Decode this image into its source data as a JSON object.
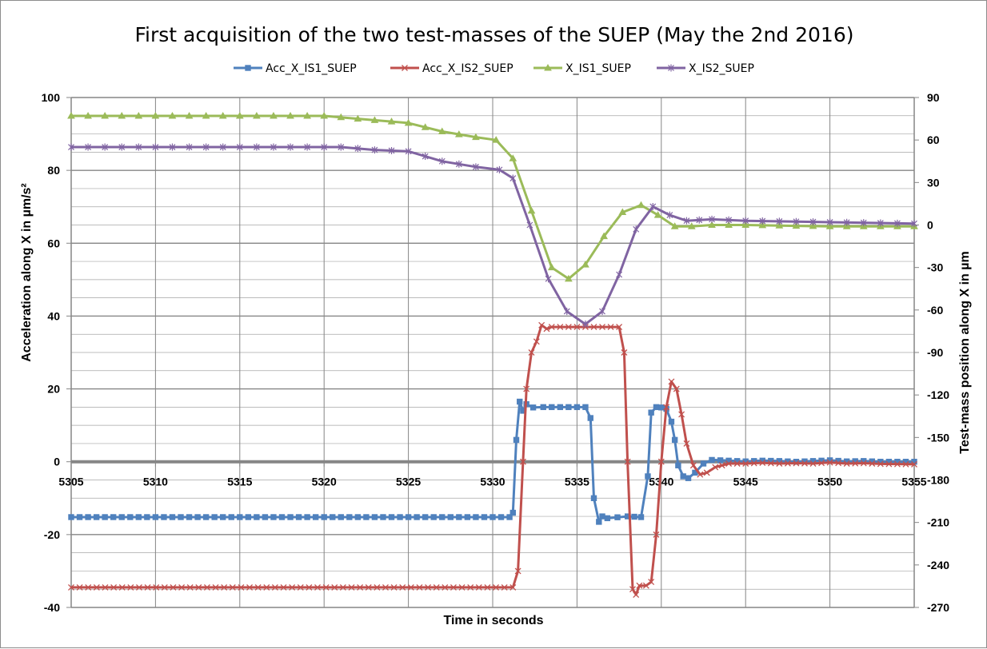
{
  "chart_data": {
    "type": "line",
    "title": "First acquisition of the two test-masses of the SUEP (May the 2nd 2016)",
    "xlabel": "Time in seconds",
    "ylabel_left": "Acceleration along X in µm/s²",
    "ylabel_right": "Test-mass position along X in µm",
    "xlim": [
      5305,
      5355
    ],
    "ylim_left": [
      -40,
      100
    ],
    "ylim_right": [
      -270,
      90
    ],
    "x_ticks": [
      5305,
      5310,
      5315,
      5320,
      5325,
      5330,
      5335,
      5340,
      5345,
      5350,
      5355
    ],
    "y_left_ticks": [
      -40,
      -20,
      0,
      20,
      40,
      60,
      80,
      100
    ],
    "y_right_ticks": [
      -270,
      -240,
      -210,
      -180,
      -150,
      -120,
      -90,
      -60,
      -30,
      0,
      30,
      60,
      90
    ],
    "grid": true,
    "legend_position": "top",
    "series": [
      {
        "name": "Acc_X_IS1_SUEP",
        "axis": "left",
        "color": "#4f81bd",
        "marker": "square",
        "points": [
          [
            5305,
            -15.2
          ],
          [
            5331,
            -15.2
          ],
          [
            5331.2,
            -14
          ],
          [
            5331.4,
            6
          ],
          [
            5331.6,
            16.5
          ],
          [
            5331.8,
            14
          ],
          [
            5332,
            15.8
          ],
          [
            5332.4,
            14.9
          ],
          [
            5333,
            15
          ],
          [
            5335.5,
            15
          ],
          [
            5335.8,
            12
          ],
          [
            5336,
            -10
          ],
          [
            5336.3,
            -16.5
          ],
          [
            5336.5,
            -15
          ],
          [
            5336.8,
            -15.5
          ],
          [
            5338,
            -15
          ],
          [
            5338.8,
            -15.2
          ],
          [
            5339.2,
            -4
          ],
          [
            5339.4,
            13.5
          ],
          [
            5339.7,
            15
          ],
          [
            5340,
            14.9
          ],
          [
            5340.3,
            14.5
          ],
          [
            5340.6,
            11
          ],
          [
            5340.8,
            6
          ],
          [
            5341,
            -1
          ],
          [
            5341.3,
            -4
          ],
          [
            5341.6,
            -4.5
          ],
          [
            5342,
            -3
          ],
          [
            5342.5,
            -0.5
          ],
          [
            5343,
            0.5
          ],
          [
            5344,
            0.3
          ],
          [
            5345,
            0.1
          ],
          [
            5346,
            0.3
          ],
          [
            5347,
            0.2
          ],
          [
            5348,
            0
          ],
          [
            5349,
            0.2
          ],
          [
            5350,
            0.4
          ],
          [
            5351,
            0.1
          ],
          [
            5352,
            0.2
          ],
          [
            5353,
            0
          ],
          [
            5355,
            0
          ]
        ]
      },
      {
        "name": "Acc_X_IS2_SUEP",
        "axis": "left",
        "color": "#c0504d",
        "marker": "x",
        "points": [
          [
            5305,
            -34.5
          ],
          [
            5331.2,
            -34.5
          ],
          [
            5331.5,
            -30
          ],
          [
            5331.8,
            0
          ],
          [
            5332,
            20
          ],
          [
            5332.3,
            30
          ],
          [
            5332.6,
            33
          ],
          [
            5332.9,
            37.5
          ],
          [
            5333.2,
            36.5
          ],
          [
            5333.5,
            37
          ],
          [
            5335,
            37
          ],
          [
            5337.5,
            37
          ],
          [
            5337.8,
            30
          ],
          [
            5338,
            0
          ],
          [
            5338.3,
            -35
          ],
          [
            5338.5,
            -36.5
          ],
          [
            5338.7,
            -34
          ],
          [
            5339.1,
            -34
          ],
          [
            5339.4,
            -33
          ],
          [
            5339.7,
            -20
          ],
          [
            5340,
            0
          ],
          [
            5340.3,
            15
          ],
          [
            5340.6,
            22
          ],
          [
            5340.9,
            20
          ],
          [
            5341.2,
            13
          ],
          [
            5341.5,
            5
          ],
          [
            5341.9,
            -1
          ],
          [
            5342.3,
            -3.5
          ],
          [
            5342.7,
            -3
          ],
          [
            5343.2,
            -1.5
          ],
          [
            5344,
            -0.5
          ],
          [
            5345,
            -0.5
          ],
          [
            5346,
            -0.3
          ],
          [
            5347,
            -0.5
          ],
          [
            5348,
            -0.4
          ],
          [
            5349,
            -0.5
          ],
          [
            5350,
            -0.2
          ],
          [
            5351,
            -0.5
          ],
          [
            5352,
            -0.4
          ],
          [
            5353,
            -0.6
          ],
          [
            5355,
            -0.7
          ]
        ]
      },
      {
        "name": "X_IS1_SUEP",
        "axis": "right",
        "color": "#9bbb59",
        "marker": "triangle",
        "points": [
          [
            5305,
            77
          ],
          [
            5320,
            77
          ],
          [
            5322,
            75
          ],
          [
            5325,
            72
          ],
          [
            5327,
            66
          ],
          [
            5329,
            62
          ],
          [
            5330.2,
            60
          ],
          [
            5331.2,
            47
          ],
          [
            5332.3,
            10
          ],
          [
            5333.5,
            -30
          ],
          [
            5334.5,
            -38
          ],
          [
            5335.5,
            -28
          ],
          [
            5336.6,
            -8
          ],
          [
            5337.7,
            9
          ],
          [
            5338.8,
            14
          ],
          [
            5339.8,
            7
          ],
          [
            5340.8,
            -1
          ],
          [
            5341.8,
            -1
          ],
          [
            5343,
            0
          ],
          [
            5345,
            0
          ],
          [
            5350,
            -1
          ],
          [
            5355,
            -1
          ]
        ]
      },
      {
        "name": "X_IS2_SUEP",
        "axis": "right",
        "color": "#8064a2",
        "marker": "star",
        "points": [
          [
            5305,
            55
          ],
          [
            5320,
            55
          ],
          [
            5321,
            55
          ],
          [
            5323,
            53
          ],
          [
            5325,
            52
          ],
          [
            5327,
            45
          ],
          [
            5329,
            41
          ],
          [
            5330.4,
            39
          ],
          [
            5331.2,
            33
          ],
          [
            5332.2,
            0
          ],
          [
            5333.3,
            -38
          ],
          [
            5334.4,
            -61
          ],
          [
            5335.5,
            -70
          ],
          [
            5336.5,
            -61
          ],
          [
            5337.5,
            -35
          ],
          [
            5338.5,
            -3
          ],
          [
            5339.5,
            13
          ],
          [
            5340.5,
            7
          ],
          [
            5341.5,
            3
          ],
          [
            5343,
            4
          ],
          [
            5345,
            3
          ],
          [
            5350,
            2
          ],
          [
            5355,
            1
          ]
        ]
      }
    ]
  }
}
